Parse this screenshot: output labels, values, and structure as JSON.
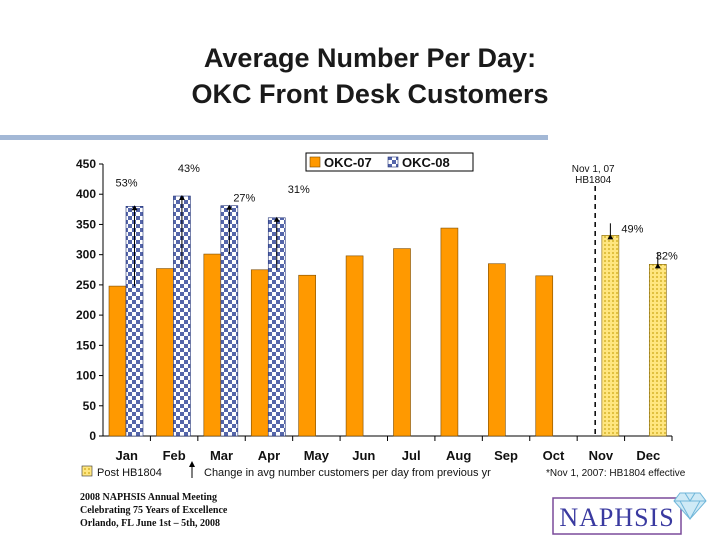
{
  "slide": {
    "title_line1": "Average Number Per Day:",
    "title_line2": "OKC Front Desk Customers",
    "footer_line1": "2008 NAPHSIS Annual Meeting",
    "footer_line2": "Celebrating 75 Years of Excellence",
    "footer_line3": "Orlando, FL     June 1st – 5th, 2008",
    "logo_text": "NAPHSIS"
  },
  "chart_data": {
    "type": "bar",
    "categories": [
      "Jan",
      "Feb",
      "Mar",
      "Apr",
      "May",
      "Jun",
      "Jul",
      "Aug",
      "Sep",
      "Oct",
      "Nov",
      "Dec"
    ],
    "series": [
      {
        "name": "OKC-07",
        "values": [
          248,
          277,
          301,
          275,
          266,
          298,
          310,
          344,
          285,
          265,
          null,
          null
        ],
        "color": "#ff9900"
      },
      {
        "name": "OKC-08",
        "values": [
          380,
          397,
          381,
          361,
          null,
          null,
          null,
          null,
          null,
          null,
          null,
          null
        ],
        "color": "#5566aa"
      },
      {
        "name": "Post HB1804",
        "values": [
          null,
          null,
          null,
          null,
          null,
          null,
          null,
          null,
          null,
          null,
          332,
          284
        ],
        "color": "#ffe680"
      }
    ],
    "ylim": [
      0,
      450
    ],
    "yticks": [
      0,
      50,
      100,
      150,
      200,
      250,
      300,
      350,
      400,
      450
    ],
    "grid": false,
    "legend_position": "top",
    "pct_labels": [
      {
        "category": "Jan",
        "text": "53%"
      },
      {
        "category": "Feb",
        "text": "43%"
      },
      {
        "category": "Mar",
        "text": "27%"
      },
      {
        "category": "Apr",
        "text": "31%"
      },
      {
        "category": "Nov",
        "text": "49%"
      },
      {
        "category": "Dec",
        "text": "32%"
      }
    ],
    "annotation": {
      "category": "Nov",
      "text_line1": "Nov 1, 07",
      "text_line2": "HB1804"
    },
    "legend_notes": {
      "post": "Post HB1804",
      "change": "Change in avg number customers per day from previous yr",
      "effective": "*Nov 1, 2007: HB1804 effective"
    }
  }
}
